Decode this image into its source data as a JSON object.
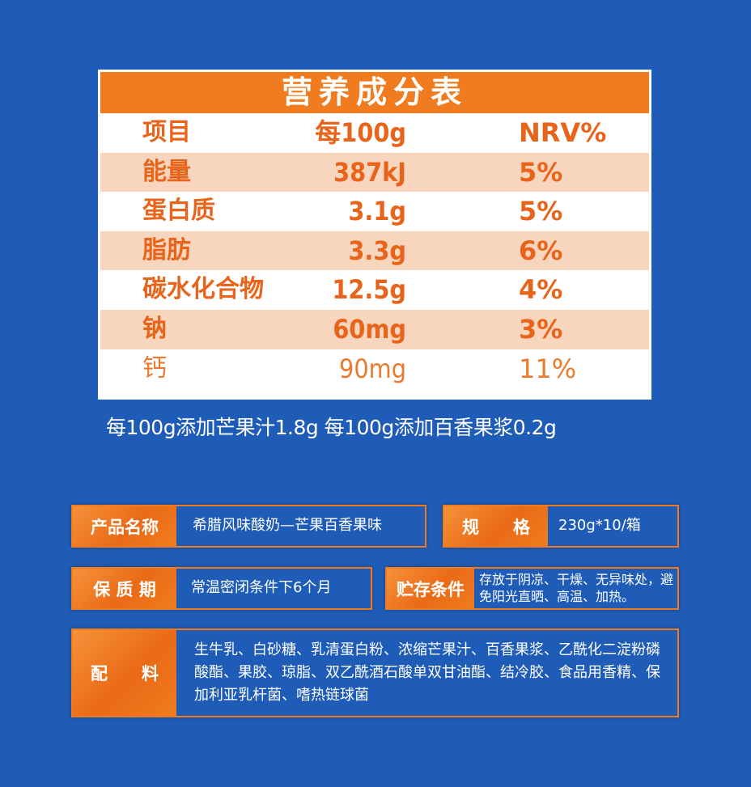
{
  "nutrition": {
    "title": "营养成分表",
    "header": {
      "item": "项目",
      "per": "每100g",
      "nrv": "NRV%"
    },
    "rows": [
      {
        "item": "能量",
        "value": "387kJ",
        "nrv": "5%"
      },
      {
        "item": "蛋白质",
        "value": "3.1g",
        "nrv": "5%"
      },
      {
        "item": "脂肪",
        "value": "3.3g",
        "nrv": "6%"
      },
      {
        "item": "碳水化合物",
        "value": "12.5g",
        "nrv": "4%"
      },
      {
        "item": "钠",
        "value": "60mg",
        "nrv": "3%"
      },
      {
        "item": "钙",
        "value": "90mg",
        "nrv": "11%"
      }
    ]
  },
  "note": "每100g添加芒果汁1.8g 每100g添加百香果浆0.2g",
  "info": {
    "product_name": {
      "label": "产品名称",
      "value": "希腊风味酸奶—芒果百香果味"
    },
    "spec": {
      "label": "规　　格",
      "value": "230g*10/箱"
    },
    "shelf_life": {
      "label": "保 质 期",
      "value": "常温密闭条件下6个月"
    },
    "storage": {
      "label": "贮存条件",
      "value": "存放于阴凉、干燥、无异味处，避免阳光直晒、高温、加热。"
    },
    "ingredients": {
      "label": "配　　料",
      "value": "生牛乳、白砂糖、乳清蛋白粉、浓缩芒果汁、百香果浆、乙酰化二淀粉磷酸酯、果胶、琼脂、双乙酰酒石酸单双甘油酯、结冷胶、食品用香精、保加利亚乳杆菌、嗜热链球菌"
    }
  },
  "colors": {
    "background": "#1f5cb8",
    "accent": "#f07c1f",
    "row_shade": "#f8d5bd"
  }
}
